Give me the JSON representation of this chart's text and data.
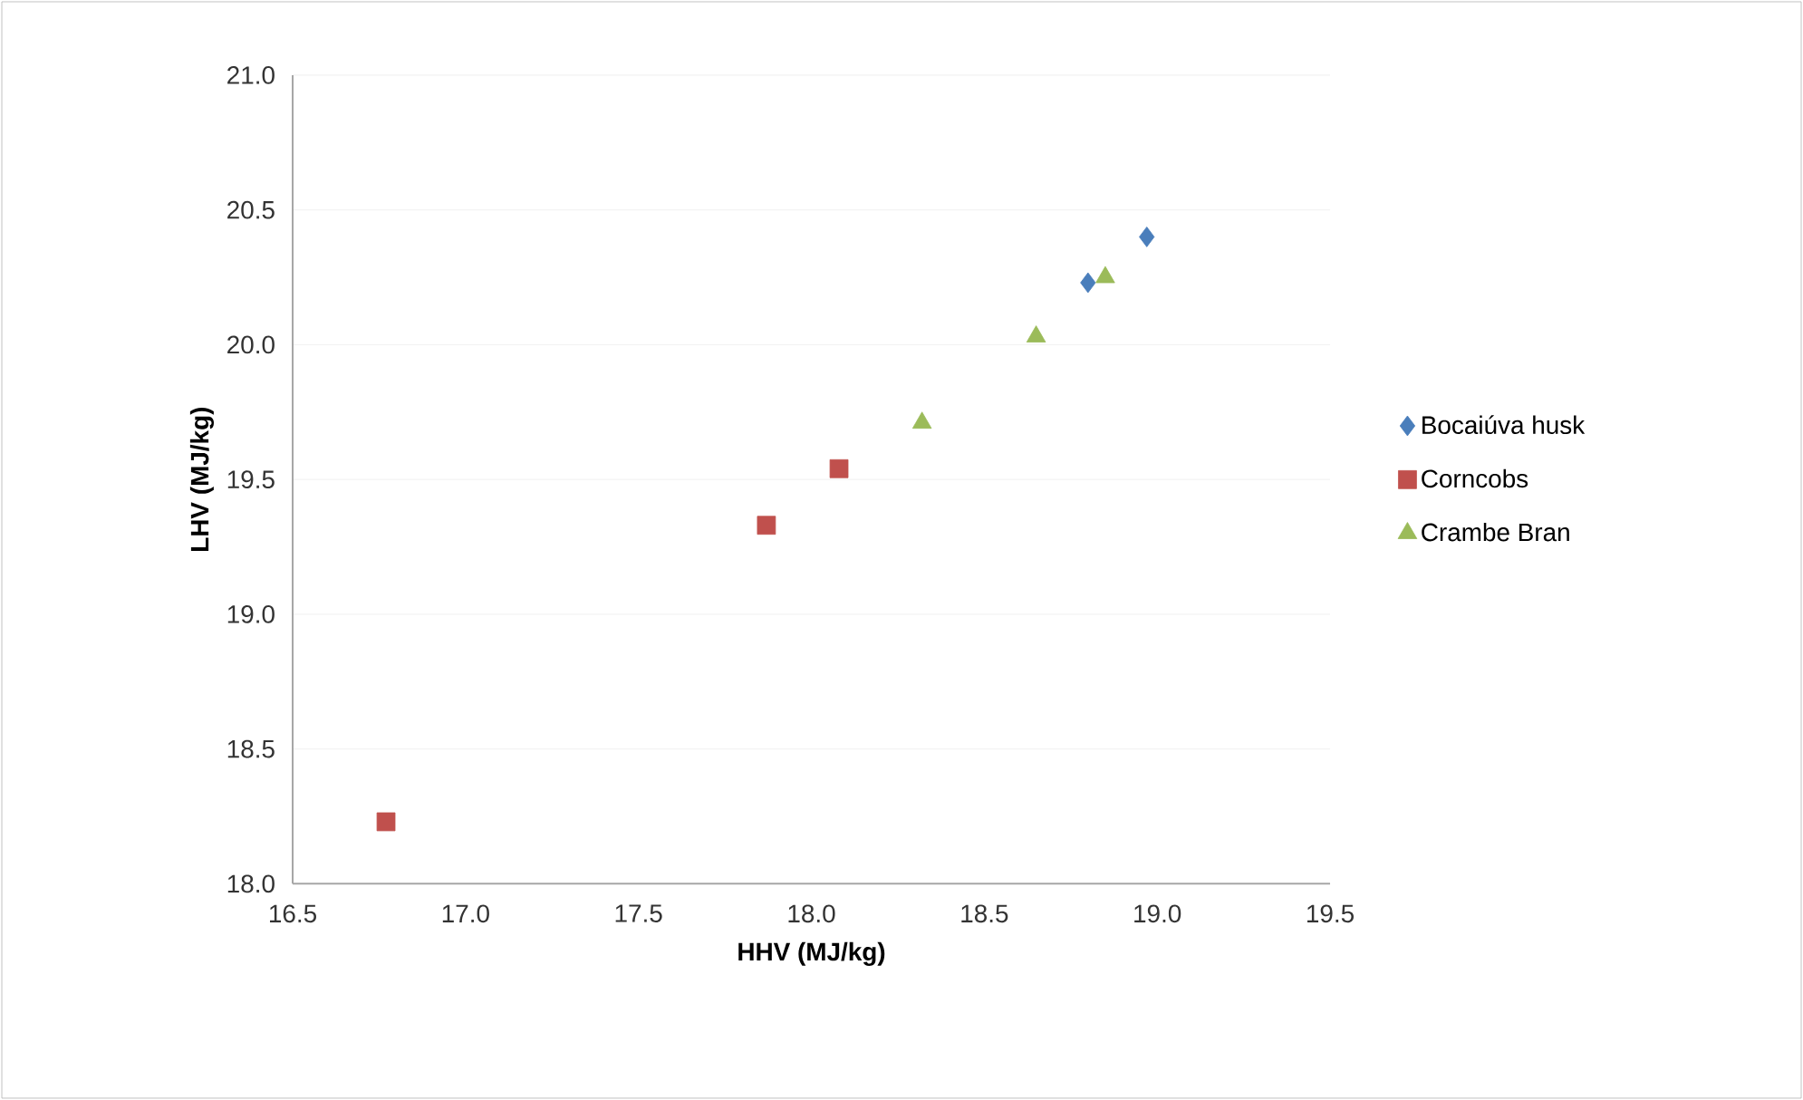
{
  "chart_data": {
    "type": "scatter",
    "xlabel": "HHV (MJ/kg)",
    "ylabel": "LHV (MJ/kg)",
    "xlim": [
      16.5,
      19.5
    ],
    "ylim": [
      18.0,
      21.0
    ],
    "xticks": [
      {
        "value": 16.5,
        "label": "16.5"
      },
      {
        "value": 17.0,
        "label": "17.0"
      },
      {
        "value": 17.5,
        "label": "17.5"
      },
      {
        "value": 18.0,
        "label": "18.0"
      },
      {
        "value": 18.5,
        "label": "18.5"
      },
      {
        "value": 19.0,
        "label": "19.0"
      },
      {
        "value": 19.5,
        "label": "19.5"
      }
    ],
    "yticks": [
      {
        "value": 18.0,
        "label": "18.0"
      },
      {
        "value": 18.5,
        "label": "18.5"
      },
      {
        "value": 19.0,
        "label": "19.0"
      },
      {
        "value": 19.5,
        "label": "19.5"
      },
      {
        "value": 20.0,
        "label": "20.0"
      },
      {
        "value": 20.5,
        "label": "20.5"
      },
      {
        "value": 21.0,
        "label": "21.0"
      }
    ],
    "grid": "y",
    "legend": "right",
    "series": [
      {
        "name": "Bocaiúva husk",
        "color": "#4a7ebb",
        "marker": "diamond",
        "x": [
          18.8,
          18.97
        ],
        "values": [
          20.23,
          20.4
        ]
      },
      {
        "name": "Corncobs",
        "color": "#c0504d",
        "marker": "square",
        "x": [
          16.77,
          17.87,
          18.08
        ],
        "values": [
          18.23,
          19.33,
          19.54
        ]
      },
      {
        "name": "Crambe Bran",
        "color": "#9bbb59",
        "marker": "triangle",
        "x": [
          18.32,
          18.65,
          18.85
        ],
        "values": [
          19.71,
          20.03,
          20.25
        ]
      }
    ]
  }
}
